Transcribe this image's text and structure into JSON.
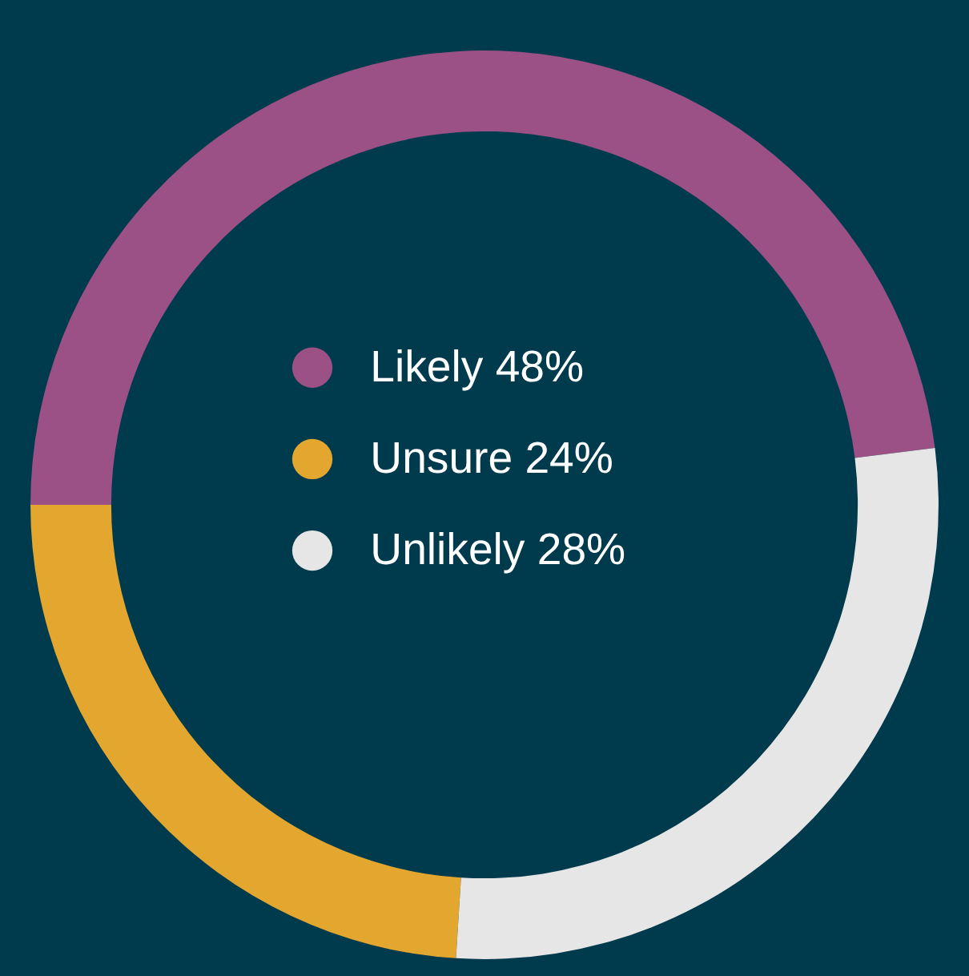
{
  "chart_data": {
    "type": "donut",
    "categories": [
      "Likely",
      "Unsure",
      "Unlikely"
    ],
    "values": [
      48,
      24,
      28
    ],
    "value_labels": [
      "48%",
      "24%",
      "28%"
    ],
    "colors": [
      "#9b5185",
      "#e3a72f",
      "#e6e6e6"
    ],
    "legend": "center"
  }
}
